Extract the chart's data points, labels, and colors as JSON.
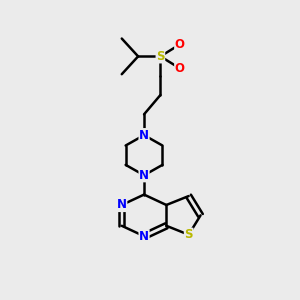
{
  "background_color": "#ebebeb",
  "bond_color": "#000000",
  "bond_width": 1.8,
  "S_color": "#b8b800",
  "O_color": "#ff0000",
  "N_color": "#0000ff",
  "figsize": [
    3.0,
    3.0
  ],
  "dpi": 100,
  "xlim": [
    0,
    10
  ],
  "ylim": [
    0,
    10
  ]
}
